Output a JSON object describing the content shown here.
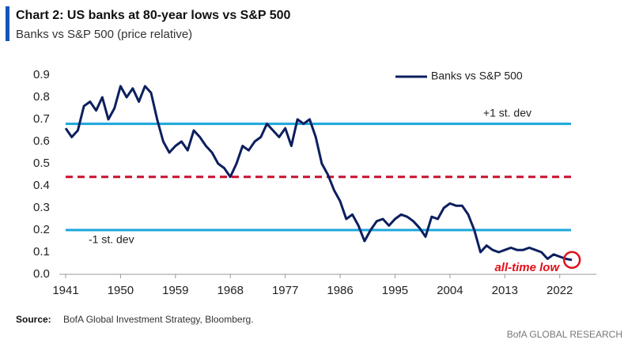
{
  "chart_data": {
    "type": "line",
    "title": "Chart 2: US banks at 80-year lows vs S&P 500",
    "subtitle": "Banks vs S&P 500 (price relative)",
    "x": [
      1941,
      1942,
      1943,
      1944,
      1945,
      1946,
      1947,
      1948,
      1949,
      1950,
      1951,
      1952,
      1953,
      1954,
      1955,
      1956,
      1957,
      1958,
      1959,
      1960,
      1961,
      1962,
      1963,
      1964,
      1965,
      1966,
      1967,
      1968,
      1969,
      1970,
      1971,
      1972,
      1973,
      1974,
      1975,
      1976,
      1977,
      1978,
      1979,
      1980,
      1981,
      1982,
      1983,
      1984,
      1985,
      1986,
      1987,
      1988,
      1989,
      1990,
      1991,
      1992,
      1993,
      1994,
      1995,
      1996,
      1997,
      1998,
      1999,
      2000,
      2001,
      2002,
      2003,
      2004,
      2005,
      2006,
      2007,
      2008,
      2009,
      2010,
      2011,
      2012,
      2013,
      2014,
      2015,
      2016,
      2017,
      2018,
      2019,
      2020,
      2021,
      2022,
      2023,
      2024
    ],
    "series": [
      {
        "name": "Banks vs S&P 500",
        "color": "#0c1f5e",
        "values": [
          0.66,
          0.62,
          0.65,
          0.76,
          0.78,
          0.74,
          0.8,
          0.7,
          0.75,
          0.85,
          0.8,
          0.84,
          0.78,
          0.85,
          0.82,
          0.7,
          0.6,
          0.55,
          0.58,
          0.6,
          0.56,
          0.65,
          0.62,
          0.58,
          0.55,
          0.5,
          0.48,
          0.44,
          0.5,
          0.58,
          0.56,
          0.6,
          0.62,
          0.68,
          0.65,
          0.62,
          0.66,
          0.58,
          0.7,
          0.68,
          0.7,
          0.62,
          0.5,
          0.45,
          0.38,
          0.33,
          0.25,
          0.27,
          0.22,
          0.15,
          0.2,
          0.24,
          0.25,
          0.22,
          0.25,
          0.27,
          0.26,
          0.24,
          0.21,
          0.17,
          0.26,
          0.25,
          0.3,
          0.32,
          0.31,
          0.31,
          0.27,
          0.2,
          0.1,
          0.13,
          0.11,
          0.1,
          0.11,
          0.12,
          0.11,
          0.11,
          0.12,
          0.11,
          0.1,
          0.07,
          0.09,
          0.08,
          0.07,
          0.065
        ]
      }
    ],
    "xlim": [
      1941,
      2028
    ],
    "xticks": [
      1941,
      1950,
      1959,
      1968,
      1977,
      1986,
      1995,
      2004,
      2013,
      2022
    ],
    "ylim": [
      0,
      0.9
    ],
    "yticks": [
      {
        "value": 0,
        "label": "0.0"
      },
      0.1,
      0.2,
      0.3,
      0.4,
      0.5,
      0.6,
      0.7,
      0.8,
      0.9
    ],
    "grid": false,
    "legend": "upper right",
    "reference_lines": [
      {
        "value": 0.68,
        "label": "+1 st. dev",
        "color": "#1aa7dc",
        "style": "solid"
      },
      {
        "value": 0.44,
        "color": "#c8102e",
        "style": "dashed"
      },
      {
        "value": 0.2,
        "label": "-1 st. dev",
        "color": "#1aa7dc",
        "style": "solid"
      }
    ],
    "annotation": {
      "text": "all-time low",
      "color": "#e0101a"
    },
    "source": {
      "label": "Source:",
      "text": "BofA Global Investment Strategy, Bloomberg."
    },
    "brand": "BofA GLOBAL RESEARCH"
  }
}
